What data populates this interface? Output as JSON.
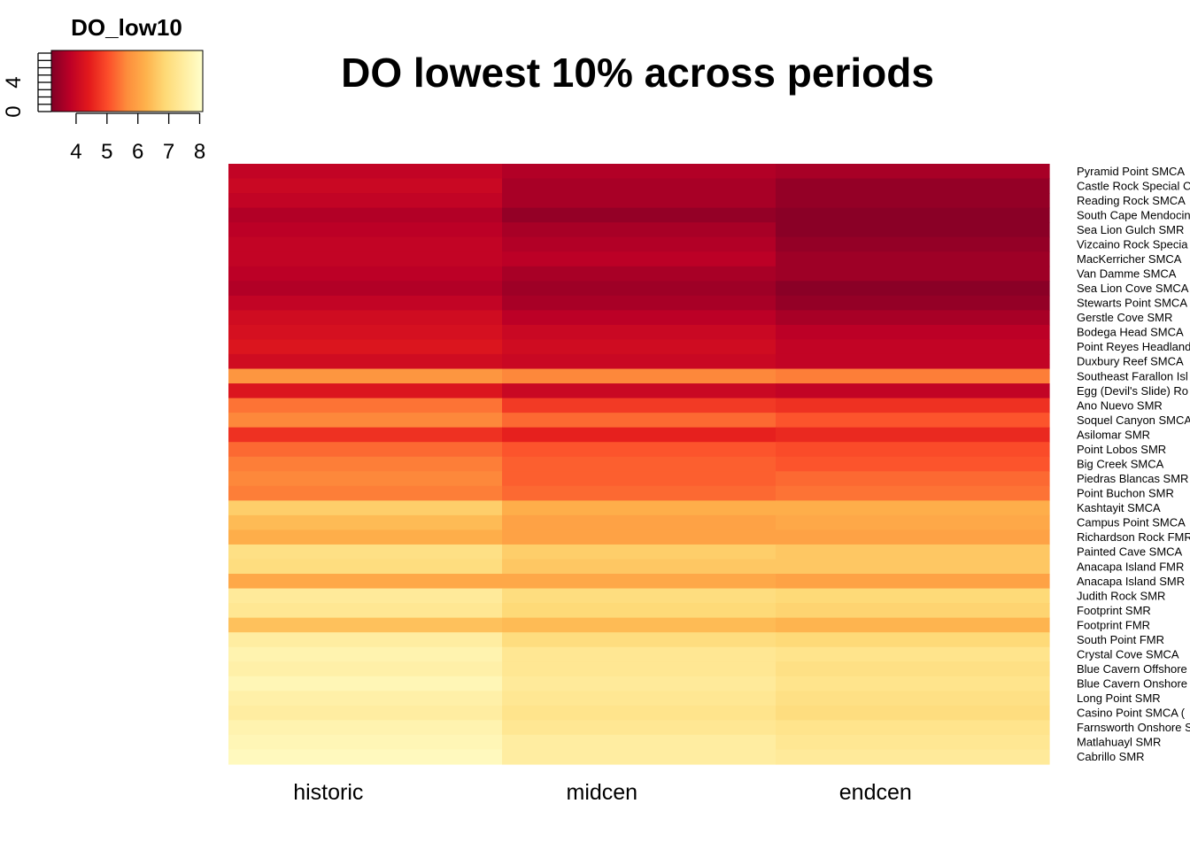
{
  "chart_data": {
    "type": "heatmap",
    "title": "DO lowest 10% across periods",
    "columns": [
      "historic",
      "midcen",
      "endcen"
    ],
    "row_labels": [
      "Pyramid Point SMCA",
      "Castle Rock Special C",
      "Reading Rock SMCA",
      "South Cape Mendocin",
      "Sea Lion Gulch SMR",
      "Vizcaino Rock Specia",
      "MacKerricher SMCA",
      "Van Damme SMCA",
      "Sea Lion Cove SMCA",
      "Stewarts Point SMCA",
      "Gerstle Cove SMR",
      "Bodega Head SMCA",
      "Point Reyes Headland",
      "Duxbury Reef SMCA",
      "Southeast Farallon Isl",
      "Egg (Devil's Slide) Ro",
      "Ano Nuevo SMR",
      "Soquel Canyon SMCA",
      "Asilomar SMR",
      "Point Lobos SMR",
      "Big Creek SMCA",
      "Piedras Blancas SMR",
      "Point Buchon SMR",
      "Kashtayit SMCA",
      "Campus Point SMCA",
      "Richardson Rock FMR",
      "Painted Cave SMCA",
      "Anacapa Island FMR",
      "Anacapa Island SMR",
      "Judith Rock SMR",
      "Footprint SMR",
      "Footprint FMR",
      "South Point FMR",
      "Crystal Cove SMCA",
      "Blue Cavern Offshore",
      "Blue Cavern Onshore",
      "Long Point SMR",
      "Casino Point SMCA (",
      "Farnsworth Onshore S",
      "Matlahuayl SMR",
      "Cabrillo SMR"
    ],
    "values": [
      [
        3.9,
        3.7,
        3.6
      ],
      [
        4.0,
        3.6,
        3.4
      ],
      [
        3.9,
        3.6,
        3.4
      ],
      [
        3.7,
        3.4,
        3.3
      ],
      [
        3.8,
        3.6,
        3.3
      ],
      [
        3.9,
        3.7,
        3.4
      ],
      [
        3.9,
        3.8,
        3.5
      ],
      [
        3.8,
        3.6,
        3.5
      ],
      [
        3.7,
        3.5,
        3.3
      ],
      [
        3.9,
        3.6,
        3.4
      ],
      [
        4.1,
        3.8,
        3.6
      ],
      [
        4.2,
        4.0,
        3.8
      ],
      [
        4.3,
        4.1,
        3.9
      ],
      [
        4.1,
        4.0,
        3.9
      ],
      [
        5.8,
        5.6,
        5.5
      ],
      [
        4.3,
        4.0,
        3.9
      ],
      [
        5.4,
        4.8,
        4.7
      ],
      [
        5.6,
        5.3,
        5.1
      ],
      [
        4.7,
        4.5,
        4.6
      ],
      [
        5.3,
        5.1,
        5.0
      ],
      [
        5.5,
        5.2,
        5.1
      ],
      [
        5.6,
        5.2,
        5.3
      ],
      [
        5.5,
        5.3,
        5.4
      ],
      [
        6.7,
        6.2,
        6.2
      ],
      [
        6.4,
        6.0,
        6.1
      ],
      [
        6.2,
        6.0,
        6.0
      ],
      [
        7.1,
        6.7,
        6.6
      ],
      [
        7.0,
        6.6,
        6.6
      ],
      [
        6.1,
        6.1,
        6.0
      ],
      [
        7.4,
        7.0,
        6.9
      ],
      [
        7.3,
        6.9,
        6.8
      ],
      [
        6.5,
        6.4,
        6.3
      ],
      [
        7.5,
        7.0,
        6.9
      ],
      [
        7.7,
        7.3,
        7.2
      ],
      [
        7.6,
        7.3,
        7.1
      ],
      [
        7.8,
        7.4,
        7.2
      ],
      [
        7.6,
        7.3,
        7.1
      ],
      [
        7.5,
        7.2,
        7.0
      ],
      [
        7.7,
        7.3,
        7.2
      ],
      [
        7.8,
        7.5,
        7.3
      ],
      [
        7.9,
        7.5,
        7.4
      ]
    ],
    "legend": {
      "title": "DO_low10",
      "x_ticks": [
        4,
        5,
        6,
        7,
        8
      ],
      "count_ticks": [
        0,
        4
      ],
      "range": [
        3.2,
        8.1
      ],
      "placement": "top-left",
      "palette": [
        "#800026",
        "#bd0026",
        "#e31a1c",
        "#fc4e2a",
        "#fd8d3c",
        "#feb24c",
        "#fed976",
        "#ffeda0",
        "#ffffcc"
      ]
    },
    "grid": false
  }
}
